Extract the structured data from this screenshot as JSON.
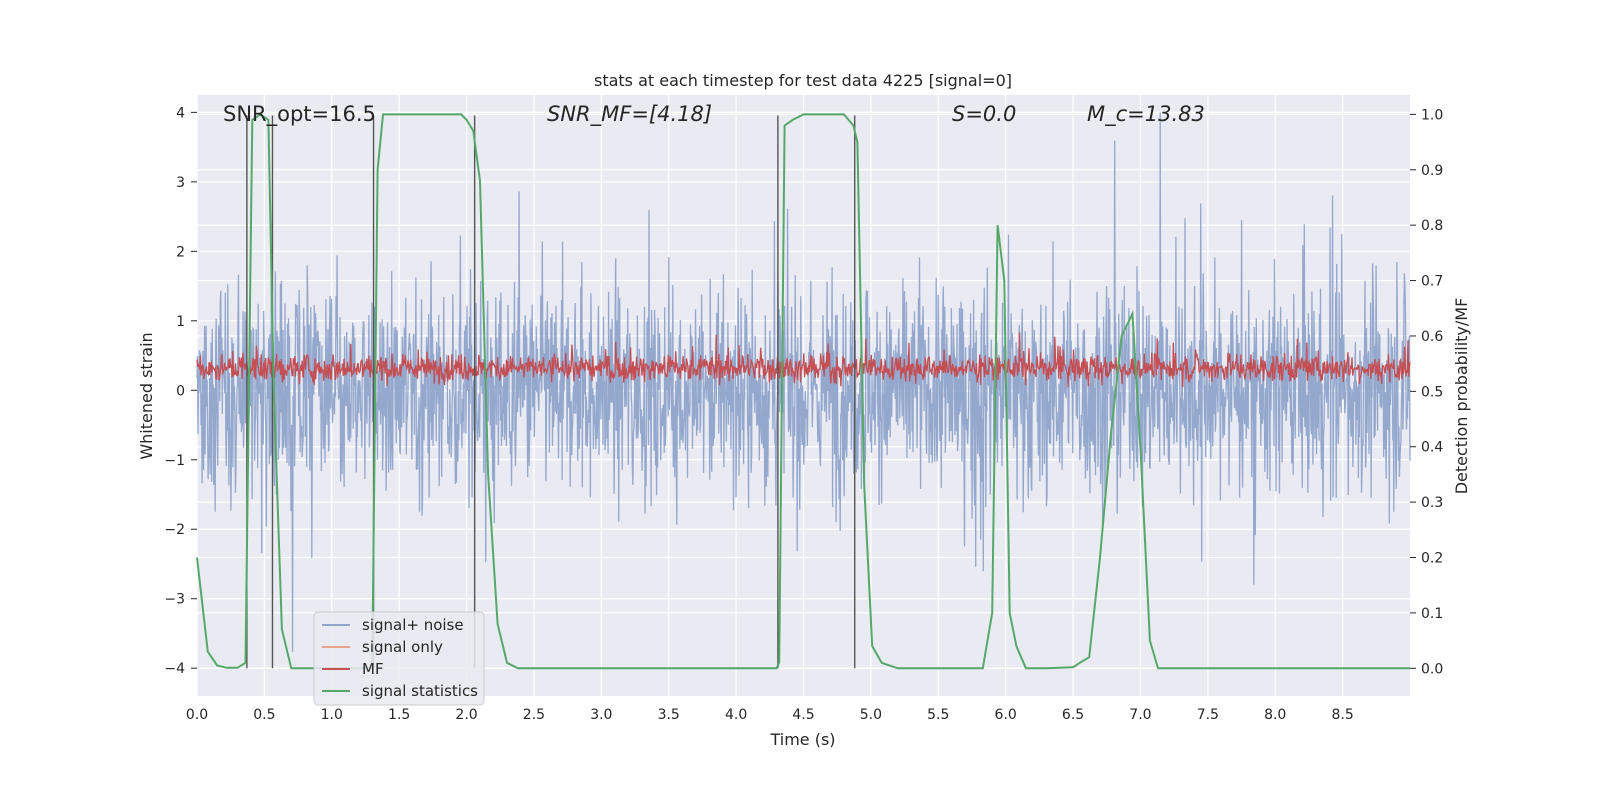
{
  "chart_data": {
    "type": "line",
    "title": "stats at each timestep for test data 4225 [signal=0]",
    "xlabel": "Time (s)",
    "ylabel": "Whitened strain",
    "ylabel_right": "Detection probability/MF",
    "xlim": [
      0,
      9
    ],
    "ylim": [
      -4.4,
      4.25
    ],
    "ylim_right": [
      -0.05,
      1.035
    ],
    "xticks": [
      "0.0",
      "0.5",
      "1.0",
      "1.5",
      "2.0",
      "2.5",
      "3.0",
      "3.5",
      "4.0",
      "4.5",
      "5.0",
      "5.5",
      "6.0",
      "6.5",
      "7.0",
      "7.5",
      "8.0",
      "8.5"
    ],
    "xtick_values": [
      0,
      0.5,
      1,
      1.5,
      2,
      2.5,
      3,
      3.5,
      4,
      4.5,
      5,
      5.5,
      6,
      6.5,
      7,
      7.5,
      8,
      8.5
    ],
    "yticks": [
      "4",
      "3",
      "2",
      "1",
      "0",
      "−1",
      "−2",
      "−3",
      "−4"
    ],
    "ytick_values": [
      4,
      3,
      2,
      1,
      0,
      -1,
      -2,
      -3,
      -4
    ],
    "yticks_right": [
      "1.0",
      "0.9",
      "0.8",
      "0.7",
      "0.6",
      "0.5",
      "0.4",
      "0.3",
      "0.2",
      "0.1",
      "0.0"
    ],
    "ytick_right_values": [
      1.0,
      0.9,
      0.8,
      0.7,
      0.6,
      0.5,
      0.4,
      0.3,
      0.2,
      0.1,
      0.0
    ],
    "annotations": [
      {
        "text": "SNR_opt=16.5",
        "x": 0.2,
        "y": 4.1
      },
      {
        "text": "SNR_MF=[4.18]",
        "x": 2.6,
        "y": 4.1
      },
      {
        "text": "S=0.0",
        "x": 5.6,
        "y": 4.1
      },
      {
        "text": "M_c=13.83",
        "x": 6.6,
        "y": 4.1
      }
    ],
    "legend": {
      "location": "lower-left",
      "entries": [
        {
          "label": "signal+ noise",
          "color": "#8fa4cb"
        },
        {
          "label": "signal only",
          "color": "#e8a58a"
        },
        {
          "label": "MF",
          "color": "#c44e52"
        },
        {
          "label": "signal statistics",
          "color": "#55a868"
        }
      ]
    },
    "vertical_lines_s": [
      0.37,
      0.56,
      1.31,
      2.06,
      4.31,
      4.88
    ],
    "series": [
      {
        "name": "signal+ noise",
        "axis": "left",
        "color": "#8fa4cb",
        "approx_amplitude_range": [
          -4.0,
          4.0
        ]
      },
      {
        "name": "MF",
        "axis": "left",
        "color": "#c44e52",
        "approx_range": [
          0.0,
          1.0
        ]
      },
      {
        "name": "signal statistics",
        "axis": "right",
        "color": "#55a868",
        "x": [
          0.0,
          0.08,
          0.15,
          0.22,
          0.3,
          0.36,
          0.41,
          0.47,
          0.53,
          0.57,
          0.63,
          0.7,
          0.8,
          0.9,
          1.0,
          1.1,
          1.2,
          1.3,
          1.34,
          1.38,
          1.43,
          1.5,
          1.6,
          1.7,
          1.8,
          1.9,
          1.96,
          2.0,
          2.05,
          2.1,
          2.16,
          2.23,
          2.3,
          2.38,
          2.5,
          3.0,
          3.5,
          4.0,
          4.3,
          4.32,
          4.36,
          4.42,
          4.5,
          4.6,
          4.7,
          4.8,
          4.87,
          4.9,
          4.95,
          5.01,
          5.08,
          5.2,
          5.4,
          5.6,
          5.75,
          5.83,
          5.9,
          5.94,
          5.99,
          6.03,
          6.08,
          6.15,
          6.3,
          6.5,
          6.55,
          6.62,
          6.7,
          6.78,
          6.86,
          6.94,
          7.0,
          7.07,
          7.13,
          7.2,
          7.5,
          8.0,
          8.5,
          9.0
        ],
        "values": [
          0.2,
          0.03,
          0.005,
          0.001,
          0.001,
          0.01,
          0.99,
          1.0,
          0.99,
          0.5,
          0.07,
          0.0,
          0.0,
          0.0,
          0.0,
          0.0,
          0.0,
          0.0,
          0.9,
          1.0,
          1.0,
          1.0,
          1.0,
          1.0,
          1.0,
          1.0,
          1.0,
          0.99,
          0.97,
          0.88,
          0.35,
          0.08,
          0.01,
          0.0,
          0.0,
          0.0,
          0.0,
          0.0,
          0.0,
          0.01,
          0.98,
          0.99,
          1.0,
          1.0,
          1.0,
          1.0,
          0.98,
          0.95,
          0.33,
          0.04,
          0.01,
          0.0,
          0.0,
          0.0,
          0.0,
          0.0,
          0.1,
          0.8,
          0.7,
          0.1,
          0.04,
          0.0,
          0.0,
          0.002,
          0.01,
          0.02,
          0.2,
          0.42,
          0.6,
          0.64,
          0.4,
          0.05,
          0.0,
          0.0,
          0.0,
          0.0,
          0.0,
          0.0
        ]
      }
    ]
  }
}
